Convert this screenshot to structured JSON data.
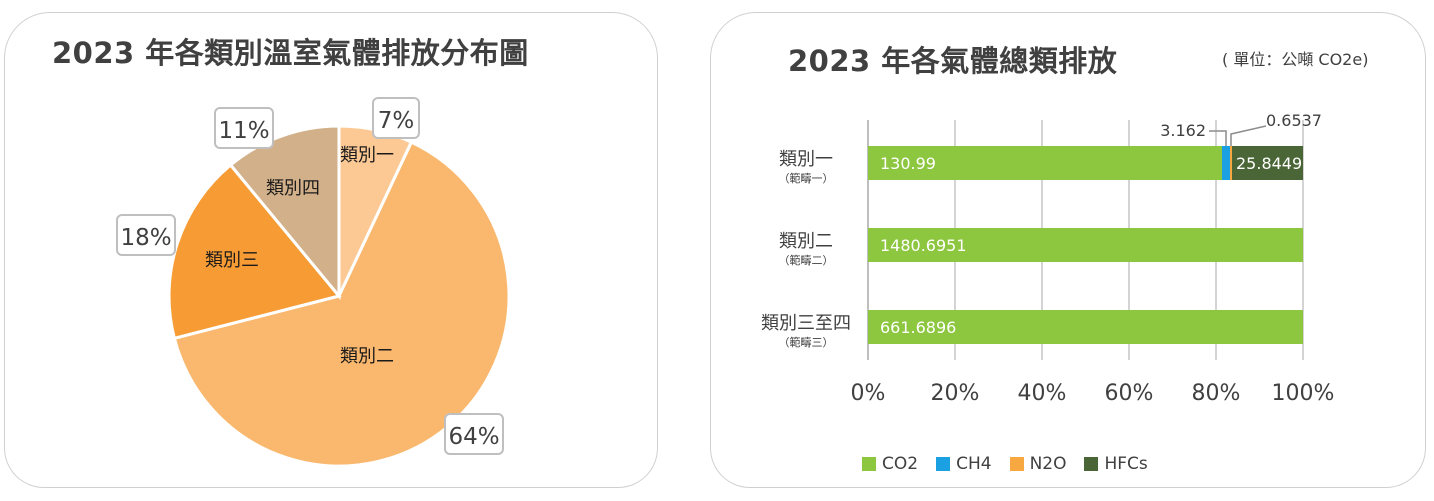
{
  "chart_data": [
    {
      "type": "pie",
      "title": "2023 年各類別溫室氣體排放分布圖",
      "slices": [
        {
          "label": "類別一",
          "percent_label": "7%",
          "value": 7,
          "color": "#fcc995"
        },
        {
          "label": "類別二",
          "percent_label": "64%",
          "value": 64,
          "color": "#f9b86e"
        },
        {
          "label": "類別三",
          "percent_label": "18%",
          "value": 18,
          "color": "#f79c35"
        },
        {
          "label": "類別四",
          "percent_label": "11%",
          "value": 11,
          "color": "#d2b089"
        }
      ]
    },
    {
      "type": "bar",
      "orientation": "horizontal",
      "stacked": "percent",
      "title": "2023 年各氣體總類排放",
      "unit": "( 單位：公噸 CO2e)",
      "categories": [
        {
          "name": "類別一",
          "sub": "（範疇一）"
        },
        {
          "name": "類別二",
          "sub": "（範疇二）"
        },
        {
          "name": "類別三至四",
          "sub": "（範疇三）"
        }
      ],
      "series": [
        {
          "name": "CO2",
          "color": "#8dc63f",
          "values": [
            130.99,
            1480.6951,
            661.6896
          ],
          "labels": [
            "130.99",
            "1480.6951",
            "661.6896"
          ]
        },
        {
          "name": "CH4",
          "color": "#1ba1e2",
          "values": [
            3.162,
            0,
            0
          ],
          "labels": [
            "3.162",
            "",
            ""
          ]
        },
        {
          "name": "N2O",
          "color": "#f7a841",
          "values": [
            0.6537,
            0,
            0
          ],
          "labels": [
            "0.6537",
            "",
            ""
          ]
        },
        {
          "name": "HFCs",
          "color": "#4a6636",
          "values": [
            25.8449,
            0,
            0
          ],
          "labels": [
            "25.8449",
            "",
            ""
          ]
        }
      ],
      "xticks": [
        "0%",
        "20%",
        "40%",
        "60%",
        "80%",
        "100%"
      ],
      "xlim": [
        0,
        100
      ],
      "grid": true,
      "legend": "bottom"
    }
  ]
}
